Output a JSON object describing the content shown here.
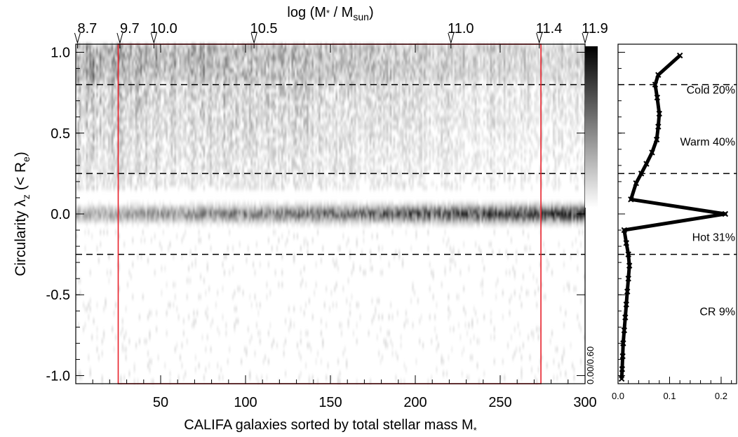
{
  "chart_data": [
    {
      "type": "heatmap",
      "title": "log (M* / Msun)",
      "title_parts": {
        "prefix": "log (M",
        "star": "*",
        "mid": " / M",
        "sub": "sun",
        "suffix": ")"
      },
      "xlabel": "CALIFA galaxies sorted by total stellar mass M*",
      "xlabel_parts": {
        "text": "CALIFA galaxies sorted by total stellar mass M",
        "sub": "*"
      },
      "ylabel": "Circularity λz (< Re)",
      "ylabel_parts": {
        "prefix": "Circularity ",
        "lambda": "λ",
        "lambda_sub": "z",
        "mid": " (< R",
        "re_sub": "e",
        "suffix": ")"
      },
      "xlim": [
        0,
        300
      ],
      "ylim": [
        -1.05,
        1.05
      ],
      "x_ticks": [
        "50",
        "100",
        "150",
        "200",
        "250",
        "300"
      ],
      "y_ticks": [
        "1.0",
        "0.5",
        "0.0",
        "-0.5",
        "-1.0"
      ],
      "top_mass_ticks": [
        {
          "x": 1,
          "label": "8.7",
          "color": "#808080"
        },
        {
          "x": 26,
          "label": "9.7",
          "color": "#000000"
        },
        {
          "x": 46,
          "label": "10.0",
          "color": "#000000"
        },
        {
          "x": 105,
          "label": "10.5",
          "color": "#000000"
        },
        {
          "x": 221,
          "label": "11.0",
          "color": "#000000"
        },
        {
          "x": 273,
          "label": "11.4",
          "color": "#000000"
        },
        {
          "x": 300,
          "label": "11.9",
          "color": "#808080"
        }
      ],
      "dashed_lines_y": [
        0.8,
        0.25,
        -0.25
      ],
      "selection_box_x": [
        25,
        274
      ],
      "colorbar_label": "0.00/0.60",
      "colorbar_range": [
        0.0,
        0.6
      ]
    },
    {
      "type": "line",
      "x": [
        0.12,
        0.078,
        0.072,
        0.076,
        0.08,
        0.078,
        0.075,
        0.066,
        0.055,
        0.045,
        0.035,
        0.025,
        0.208,
        0.012,
        0.016,
        0.02,
        0.022,
        0.02,
        0.018,
        0.016,
        0.014,
        0.012,
        0.01,
        0.009,
        0.008,
        0.007
      ],
      "y": [
        0.98,
        0.86,
        0.8,
        0.72,
        0.62,
        0.54,
        0.46,
        0.38,
        0.31,
        0.25,
        0.19,
        0.09,
        0.0,
        -0.1,
        -0.18,
        -0.25,
        -0.32,
        -0.4,
        -0.48,
        -0.56,
        -0.64,
        -0.72,
        -0.8,
        -0.88,
        -0.96,
        -1.02
      ],
      "xlim": [
        0,
        0.23
      ],
      "ylim": [
        -1.05,
        1.05
      ],
      "x_ticks": [
        "0.0",
        "0.1",
        "0.2"
      ],
      "dashed_lines_y": [
        0.8,
        0.25,
        -0.25
      ],
      "annotations": [
        {
          "text": "Cold 20%",
          "color": "#5a1fd1",
          "y": 0.77
        },
        {
          "text": "Warm 40%",
          "color": "#f0a020",
          "y": 0.45
        },
        {
          "text": "Hot 31%",
          "color": "#e00000",
          "y": -0.14
        },
        {
          "text": "CR 9%",
          "color": "#000000",
          "y": -0.6
        }
      ]
    }
  ]
}
